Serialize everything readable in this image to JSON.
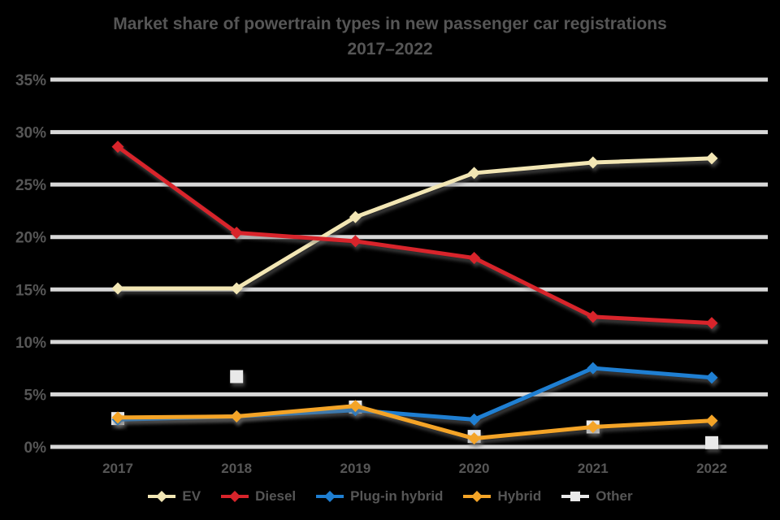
{
  "chart_data": {
    "type": "line",
    "title": "Market share of powertrain types in new passenger car registrations",
    "subtitle": "2017–2022",
    "x": [
      "2017",
      "2018",
      "2019",
      "2020",
      "2021",
      "2022"
    ],
    "xlabel": "",
    "ylabel": "",
    "ylim": [
      0,
      35
    ],
    "y_tick_step": 5,
    "y_tick_labels": [
      "0%",
      "5%",
      "10%",
      "15%",
      "20%",
      "25%",
      "30%",
      "35%"
    ],
    "grid": true,
    "legend_position": "bottom",
    "series": [
      {
        "name": "EV",
        "color": "#f2e6b4",
        "marker": "diamond",
        "line": "solid",
        "values": [
          15.1,
          15.1,
          21.9,
          26.1,
          27.1,
          27.5
        ]
      },
      {
        "name": "Diesel",
        "color": "#d8242b",
        "marker": "diamond",
        "line": "solid",
        "values": [
          28.6,
          20.4,
          19.6,
          18.0,
          12.4,
          11.8
        ]
      },
      {
        "name": "Plug-in hybrid",
        "color": "#1f7fd2",
        "marker": "diamond",
        "line": "solid",
        "values": [
          2.6,
          2.9,
          3.5,
          2.6,
          7.5,
          6.6
        ]
      },
      {
        "name": "Hybrid",
        "color": "#f4a427",
        "marker": "diamond",
        "line": "solid",
        "values": [
          2.8,
          2.9,
          3.9,
          0.8,
          1.9,
          2.5
        ]
      },
      {
        "name": "Other",
        "color": "#e9e9e9",
        "marker": "square",
        "line": "none",
        "values": [
          2.7,
          6.7,
          3.8,
          1.0,
          1.9,
          0.4
        ]
      }
    ]
  },
  "colors": {
    "background": "#000000",
    "gridline": "#d8d8d8",
    "text": "#565656"
  }
}
